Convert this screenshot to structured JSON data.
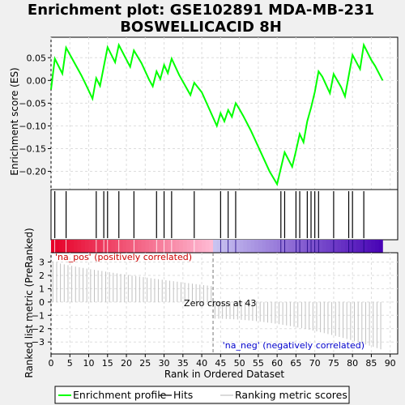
{
  "title_line1": "Enrichment plot: GSE102891 MDA-MB-231",
  "title_line2": "BOSWELLICACID 8H",
  "colors": {
    "es": "#00ff00",
    "hits": "#000000",
    "metric": "#c0c0c0",
    "pos_label": "#cc0000",
    "neg_label": "#0000cc"
  },
  "chart_data": {
    "type": "line",
    "panels": {
      "es": {
        "ylabel": "Enrichment score (ES)",
        "ylim": [
          -0.24,
          0.095
        ],
        "yticks": [
          0.05,
          0.0,
          -0.05,
          -0.1,
          -0.15,
          -0.2
        ],
        "ytick_labels": [
          "0.05",
          "0.00",
          "−0.05",
          "−0.10",
          "−0.15",
          "−0.20"
        ],
        "series": [
          {
            "x": [
              0,
              1,
              3,
              4,
              8,
              9,
              11,
              12,
              13,
              15,
              17,
              18,
              21,
              22,
              24,
              26,
              27,
              28,
              29,
              30,
              31,
              32,
              34,
              37,
              38,
              40,
              44,
              45,
              46,
              47,
              48,
              49,
              50,
              51,
              53,
              58,
              60,
              62,
              64,
              65,
              66,
              67,
              68,
              69,
              70,
              71,
              72,
              74,
              75,
              77,
              78,
              80,
              82,
              83,
              85,
              86,
              88
            ],
            "y": [
              -0.02,
              0.048,
              0.015,
              0.072,
              0.012,
              -0.005,
              -0.04,
              0.005,
              -0.012,
              0.073,
              0.04,
              0.078,
              0.03,
              0.066,
              0.038,
              0.002,
              -0.013,
              0.02,
              0.003,
              0.034,
              0.016,
              0.048,
              0.012,
              -0.032,
              -0.005,
              -0.026,
              -0.1,
              -0.072,
              -0.09,
              -0.065,
              -0.08,
              -0.05,
              -0.063,
              -0.078,
              -0.11,
              -0.2,
              -0.228,
              -0.158,
              -0.19,
              -0.155,
              -0.118,
              -0.136,
              -0.09,
              -0.06,
              -0.025,
              0.02,
              0.008,
              -0.028,
              0.014,
              -0.015,
              -0.035,
              0.056,
              0.025,
              0.078,
              0.045,
              0.032,
              0.0
            ]
          }
        ]
      },
      "hits": {
        "positions": [
          1,
          4,
          12,
          14,
          15,
          18,
          22,
          28,
          30,
          32,
          38,
          45,
          47,
          49,
          61,
          62,
          65,
          66,
          68,
          69,
          70,
          71,
          75,
          79,
          80,
          83
        ]
      },
      "metric": {
        "ylabel": "Ranked list metric (PreRanked)",
        "xlabel": "Rank in Ordered Dataset",
        "ylim": [
          -3.9,
          3.7
        ],
        "yticks": [
          3,
          2,
          1,
          0,
          -1,
          -2,
          -3
        ],
        "xlim": [
          0,
          92
        ],
        "xticks": [
          0,
          5,
          10,
          15,
          20,
          25,
          30,
          35,
          40,
          45,
          50,
          55,
          60,
          65,
          70,
          75,
          80,
          85,
          90
        ],
        "zero_cross_rank": 43,
        "zero_cross_label": "Zero cross at 43",
        "pos_label": "'na_pos' (positively correlated)",
        "neg_label": "'na_neg' (negatively correlated)",
        "n_genes": 88,
        "first": 3.05,
        "pos_end": 1.2,
        "neg_start": -1.25,
        "last": -3.55
      }
    },
    "legend": [
      {
        "label": "Enrichment profile",
        "kind": "line",
        "color": "#00ff00"
      },
      {
        "label": "Hits",
        "kind": "line",
        "color": "#000000"
      },
      {
        "label": "Ranking metric scores",
        "kind": "line",
        "color": "#c0c0c0"
      }
    ]
  }
}
